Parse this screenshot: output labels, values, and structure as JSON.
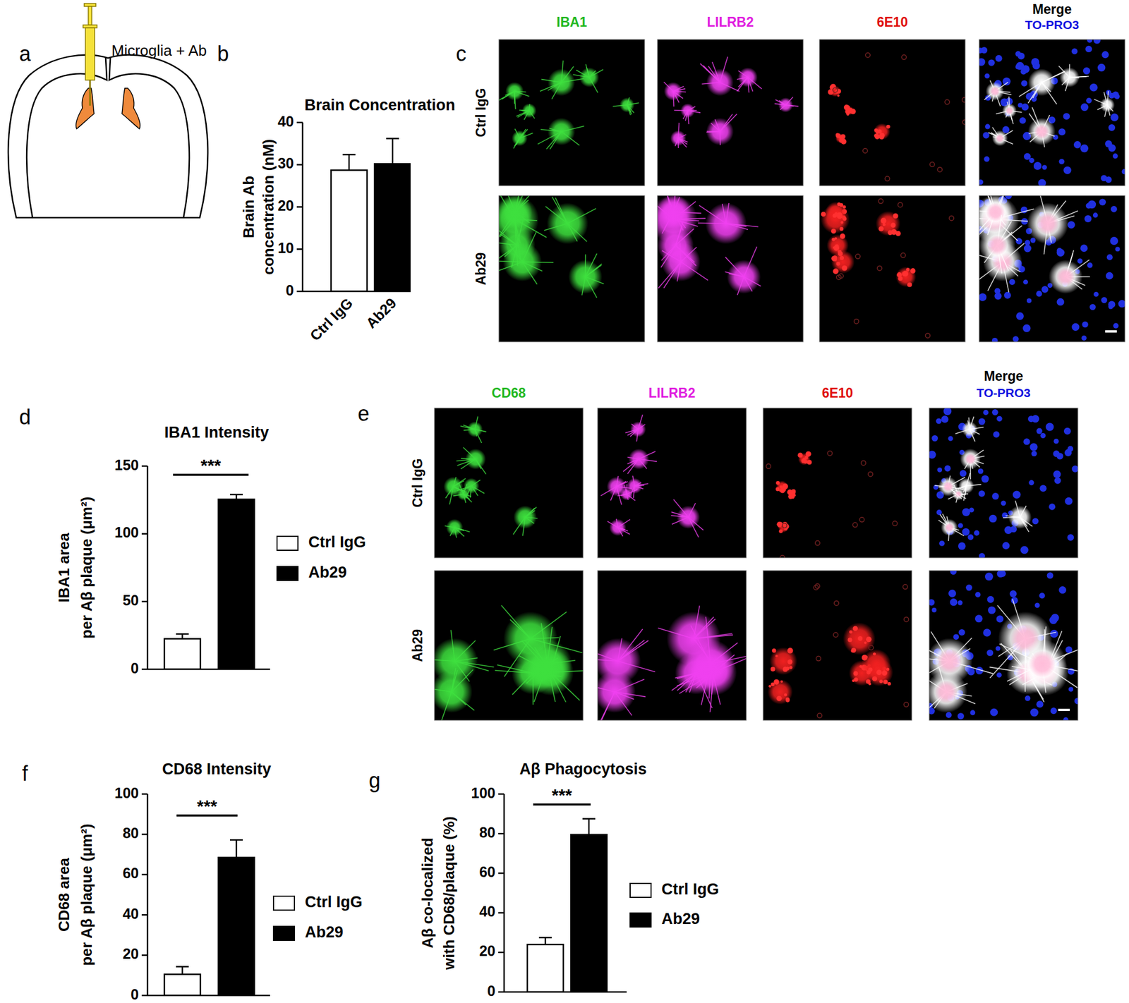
{
  "chart_data": [
    {
      "type": "bar",
      "panel_label": "b",
      "title": "Brain Concentration",
      "ylabel": [
        "Brain Ab",
        "concentration (nM)"
      ],
      "categories": [
        "Ctrl IgG",
        "Ab29"
      ],
      "values": [
        28.7,
        30.2
      ],
      "errors": [
        3.7,
        6.0
      ],
      "colors": [
        "#ffffff",
        "#000000"
      ],
      "ylim": [
        0,
        40
      ],
      "yticks": [
        0,
        10,
        20,
        30,
        40
      ]
    },
    {
      "type": "bar",
      "panel_label": "d",
      "title": "IBA1 Intensity",
      "ylabel": [
        "IBA1 area",
        "per Aβ plaque (μm²)"
      ],
      "categories": [
        null
      ],
      "series": [
        {
          "name": "Ctrl IgG",
          "color": "#ffffff",
          "values": [
            22.5
          ],
          "errors": [
            3.5
          ]
        },
        {
          "name": "Ab29",
          "color": "#000000",
          "values": [
            125.5
          ],
          "errors": [
            3.5
          ]
        }
      ],
      "ylim": [
        0,
        150
      ],
      "yticks": [
        0,
        50,
        100,
        150
      ],
      "legend": "right",
      "annotation": "***"
    },
    {
      "type": "bar",
      "panel_label": "f",
      "title": "CD68 Intensity",
      "ylabel": [
        "CD68 area",
        "per Aβ plaque (μm²)"
      ],
      "categories": [
        null
      ],
      "series": [
        {
          "name": "Ctrl IgG",
          "color": "#ffffff",
          "values": [
            10.5
          ],
          "errors": [
            3.8
          ]
        },
        {
          "name": "Ab29",
          "color": "#000000",
          "values": [
            68.5
          ],
          "errors": [
            8.7
          ]
        }
      ],
      "ylim": [
        0,
        100
      ],
      "yticks": [
        0,
        20,
        40,
        60,
        80,
        100
      ],
      "legend": "right",
      "annotation": "***"
    },
    {
      "type": "bar",
      "panel_label": "g",
      "title": "Aβ Phagocytosis",
      "ylabel": [
        "Aβ co-localized",
        "with CD68/plaque (%)"
      ],
      "categories": [
        null
      ],
      "series": [
        {
          "name": "Ctrl IgG",
          "color": "#ffffff",
          "values": [
            24
          ],
          "errors": [
            3.5
          ]
        },
        {
          "name": "Ab29",
          "color": "#000000",
          "values": [
            79.5
          ],
          "errors": [
            8
          ]
        }
      ],
      "ylim": [
        0,
        100
      ],
      "yticks": [
        0,
        20,
        40,
        60,
        80,
        100
      ],
      "legend": "right",
      "annotation": "***"
    }
  ],
  "figure": {
    "a": {
      "panel_label": "a",
      "label": "Microglia + Ab"
    },
    "c": {
      "panel_label": "c",
      "channels": [
        "IBA1",
        "LILRB2",
        "6E10",
        "Merge"
      ],
      "merge_stain": "TO-PRO3",
      "rows": [
        "Ctrl IgG",
        "Ab29"
      ]
    },
    "e": {
      "panel_label": "e",
      "channels": [
        "CD68",
        "LILRB2",
        "6E10",
        "Merge"
      ],
      "merge_stain": "TO-PRO3",
      "rows": [
        "Ctrl IgG",
        "Ab29"
      ]
    }
  }
}
